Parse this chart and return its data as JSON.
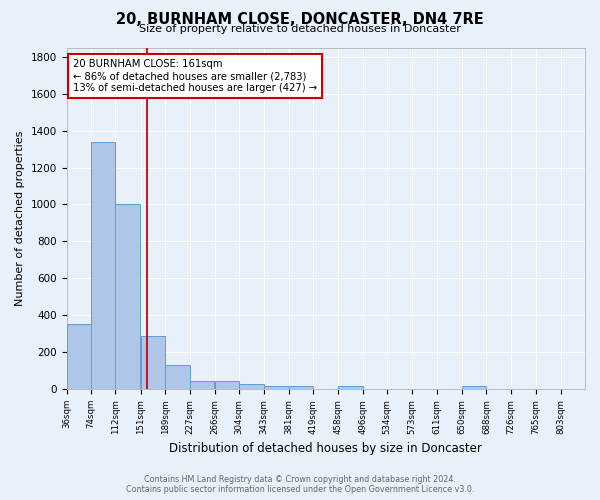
{
  "title": "20, BURNHAM CLOSE, DONCASTER, DN4 7RE",
  "subtitle": "Size of property relative to detached houses in Doncaster",
  "xlabel": "Distribution of detached houses by size in Doncaster",
  "ylabel": "Number of detached properties",
  "bar_edges": [
    36,
    74,
    112,
    151,
    189,
    227,
    266,
    304,
    343,
    381,
    419,
    458,
    496,
    534,
    573,
    611,
    650,
    688,
    726,
    765,
    803
  ],
  "bar_heights": [
    350,
    1340,
    1005,
    285,
    130,
    43,
    43,
    30,
    18,
    18,
    0,
    18,
    0,
    0,
    0,
    0,
    18,
    0,
    0,
    0,
    0
  ],
  "bar_color": "#aec6e8",
  "bar_edge_color": "#5a9fd4",
  "background_color": "#e8f0fa",
  "grid_color": "#ffffff",
  "red_line_x": 161,
  "annotation_line1": "20 BURNHAM CLOSE: 161sqm",
  "annotation_line2": "← 86% of detached houses are smaller (2,783)",
  "annotation_line3": "13% of semi-detached houses are larger (427) →",
  "annotation_box_color": "#ffffff",
  "annotation_box_edge_color": "#cc0000",
  "footer_line1": "Contains HM Land Registry data © Crown copyright and database right 2024.",
  "footer_line2": "Contains public sector information licensed under the Open Government Licence v3.0.",
  "ylim": [
    0,
    1850
  ],
  "yticks": [
    0,
    200,
    400,
    600,
    800,
    1000,
    1200,
    1400,
    1600,
    1800
  ],
  "tick_labels": [
    "36sqm",
    "74sqm",
    "112sqm",
    "151sqm",
    "189sqm",
    "227sqm",
    "266sqm",
    "304sqm",
    "343sqm",
    "381sqm",
    "419sqm",
    "458sqm",
    "496sqm",
    "534sqm",
    "573sqm",
    "611sqm",
    "650sqm",
    "688sqm",
    "726sqm",
    "765sqm",
    "803sqm"
  ]
}
